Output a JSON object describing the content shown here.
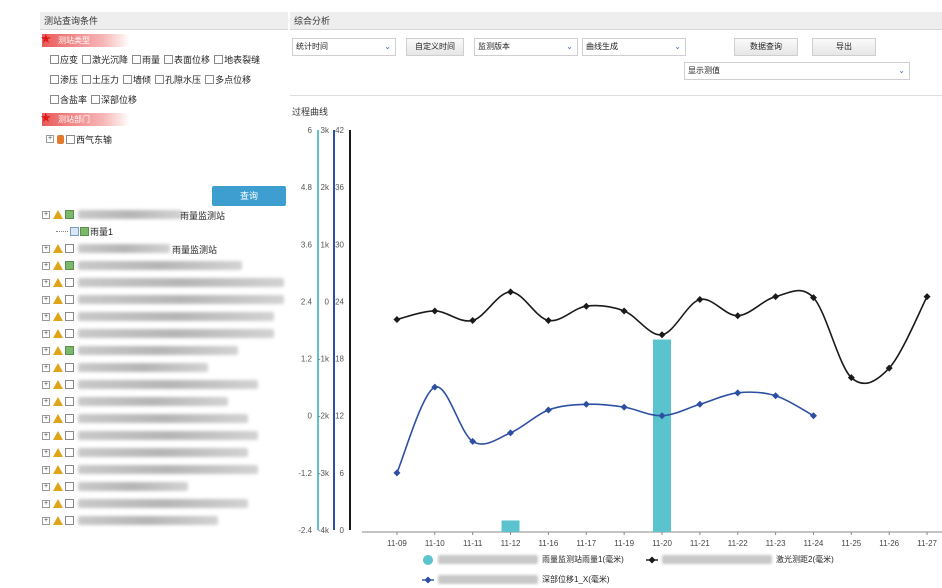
{
  "left_panel": {
    "title": "测站查询条件",
    "section_type": "测站类型",
    "station_types": [
      [
        "应变",
        "激光沉降",
        "雨量",
        "表面位移",
        "地表裂缝"
      ],
      [
        "渗压",
        "土压力",
        "墙倾",
        "孔隙水压",
        "多点位移"
      ],
      [
        "含盐率",
        "深部位移"
      ]
    ],
    "section_dept": "测站部门",
    "dept_item": "西气东输",
    "query_button": "查询",
    "tree": {
      "station_a": "雨量监测站",
      "child_a": "雨量1",
      "station_b": "雨量监测站"
    }
  },
  "right_panel": {
    "title": "综合分析",
    "toolbar": {
      "time_select": "统计时间",
      "custom_time_button": "自定义时间",
      "monitor_select": "监测版本",
      "curve_select": "曲线生成",
      "query_button": "数据查询",
      "export_button": "导出",
      "display_select": "显示测值"
    },
    "chart_section_title": "过程曲线"
  },
  "colors": {
    "bar": "#5bc3cd",
    "black_series": "#1a1a1a",
    "blue_series": "#2d4fa2",
    "axis_cyan": "#5bc3cd",
    "axis_blue": "#2d4fa2"
  },
  "chart_data": {
    "type": "line",
    "categories": [
      "11-09",
      "11-10",
      "11-11",
      "11-12",
      "11-16",
      "11-17",
      "11-19",
      "11-20",
      "11-21",
      "11-22",
      "11-23",
      "11-24",
      "11-25",
      "11-26",
      "11-27"
    ],
    "axes": [
      {
        "id": "y1",
        "color": "#5bc3cd",
        "ticks": [
          "-2.4",
          "-1.2",
          "0",
          "1.2",
          "2.4",
          "3.6",
          "4.8",
          "6"
        ],
        "range": [
          -2.4,
          6
        ]
      },
      {
        "id": "y2",
        "color": "#2d4fa2",
        "ticks": [
          "-4k",
          "-3k",
          "-2k",
          "-1k",
          "0",
          "1k",
          "2k",
          "3k"
        ],
        "range": [
          -4000,
          3000
        ]
      },
      {
        "id": "y3",
        "color": "#1a1a1a",
        "ticks": [
          "0",
          "6",
          "12",
          "18",
          "24",
          "30",
          "36",
          "42"
        ],
        "range": [
          0,
          42
        ]
      }
    ],
    "series": [
      {
        "type": "bar",
        "axis": "y1",
        "values": [
          null,
          null,
          null,
          -2.2,
          null,
          null,
          null,
          1.6,
          null,
          null,
          null,
          null,
          null,
          null,
          null
        ]
      },
      {
        "type": "line",
        "axis": "y3",
        "values": [
          22.1,
          23.0,
          22.0,
          25.0,
          22.0,
          23.5,
          23.0,
          20.5,
          24.2,
          22.5,
          24.5,
          24.4,
          16.0,
          17.0,
          24.5
        ]
      },
      {
        "type": "line",
        "axis": "y2",
        "values": [
          -3000,
          -1500,
          -2450,
          -2300,
          -1900,
          -1800,
          -1850,
          -2000,
          -1800,
          -1600,
          -1650,
          -2000,
          null,
          null,
          null
        ]
      }
    ],
    "legend": [
      {
        "marker": "circle",
        "color": "#5bc3cd",
        "label": "雨量监测站雨量1(毫米)"
      },
      {
        "marker": "diamond",
        "color": "#1a1a1a",
        "label": "激光测距2(毫米)"
      },
      {
        "marker": "diamond",
        "color": "#2d4fa2",
        "label": "深部位移1_X(毫米)"
      }
    ]
  }
}
